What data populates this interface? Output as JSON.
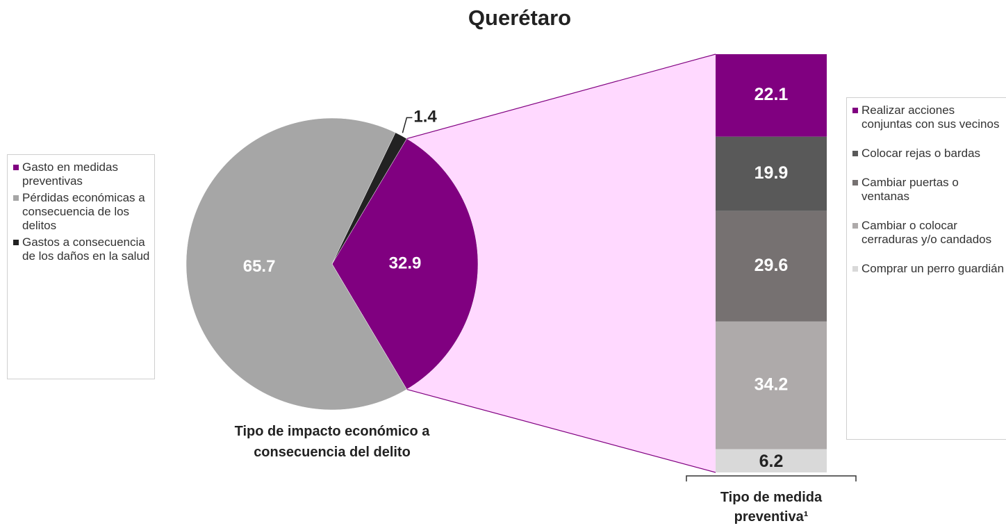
{
  "chart_data": [
    {
      "type": "pie",
      "title": "Querétaro",
      "categories": [
        "Gasto en medidas preventivas",
        "Pérdidas económicas a consecuencia de los delitos",
        "Gastos a consecuencia de los daños en la salud"
      ],
      "values": [
        32.9,
        65.7,
        1.4
      ],
      "colors": [
        "#800080",
        "#a6a6a6",
        "#222222"
      ],
      "xlabel": "Tipo de impacto económico a consecuencia del delito"
    },
    {
      "type": "stacked_bar",
      "xlabel": "Tipo de medida preventiva¹",
      "series": [
        {
          "name": "Realizar acciones conjuntas con sus vecinos",
          "color": "#800080",
          "values": [
            22.1
          ]
        },
        {
          "name": "Colocar rejas o bardas",
          "color": "#595959",
          "values": [
            19.9
          ]
        },
        {
          "name": "Cambiar puertas o ventanas",
          "color": "#767171",
          "values": [
            29.6
          ]
        },
        {
          "name": "Cambiar o colocar cerraduras y/o candados",
          "color": "#aeaaaa",
          "values": [
            34.2
          ]
        },
        {
          "name": "Comprar un perro guardián",
          "color": "#d9d9d9",
          "values": [
            6.2
          ]
        }
      ]
    }
  ]
}
